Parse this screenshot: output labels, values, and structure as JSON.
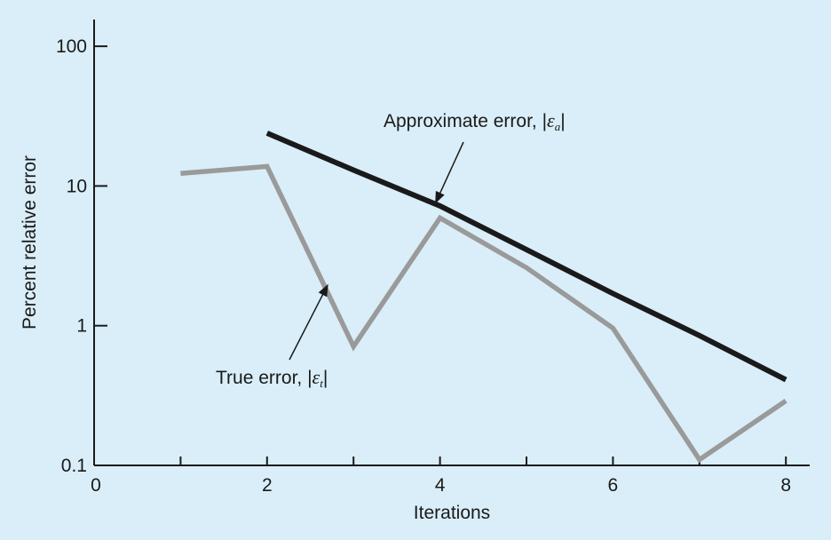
{
  "colors": {
    "background": "#d9eef8",
    "axes": "#1a1a1a",
    "approximate_error": "#1a1a1a",
    "true_error": "#9a9a9a"
  },
  "chart_data": {
    "type": "line",
    "title": "",
    "xlabel": "Iterations",
    "ylabel": "Percent relative error",
    "xlim": [
      0,
      8.2
    ],
    "ylim": [
      0.1,
      130
    ],
    "yscale": "log",
    "grid": false,
    "x_ticks": [
      0,
      1,
      2,
      3,
      4,
      5,
      6,
      7,
      8
    ],
    "x_tick_labels": [
      {
        "value": 0,
        "label": "0"
      },
      {
        "value": 2,
        "label": "2"
      },
      {
        "value": 4,
        "label": "4"
      },
      {
        "value": 6,
        "label": "6"
      },
      {
        "value": 8,
        "label": "8"
      }
    ],
    "y_ticks": [
      {
        "value": 0.1,
        "label": "0.1"
      },
      {
        "value": 1,
        "label": "1"
      },
      {
        "value": 10,
        "label": "10"
      },
      {
        "value": 100,
        "label": "100"
      }
    ],
    "series": [
      {
        "name": "Approximate error",
        "color": "#1a1a1a",
        "x": [
          2,
          3,
          4,
          5,
          6,
          7,
          8
        ],
        "y": [
          23.9,
          13.0,
          7.2,
          3.5,
          1.7,
          0.85,
          0.41
        ]
      },
      {
        "name": "True error",
        "color": "#9a9a9a",
        "x": [
          1,
          2,
          3,
          4,
          5,
          6,
          7,
          8
        ],
        "y": [
          12.3,
          13.8,
          0.71,
          5.9,
          2.6,
          0.96,
          0.11,
          0.29
        ]
      }
    ],
    "annotations": [
      {
        "series": "Approximate error",
        "text": "Approximate error, |",
        "symbol": "ε",
        "subscript": "a",
        "closing": "|",
        "points_to": {
          "x": 3.95,
          "y": 7.6
        }
      },
      {
        "series": "True error",
        "text": "True error, |",
        "symbol": "ε",
        "subscript": "t",
        "closing": "|",
        "points_to": {
          "x": 2.7,
          "y": 1.95
        }
      }
    ]
  }
}
